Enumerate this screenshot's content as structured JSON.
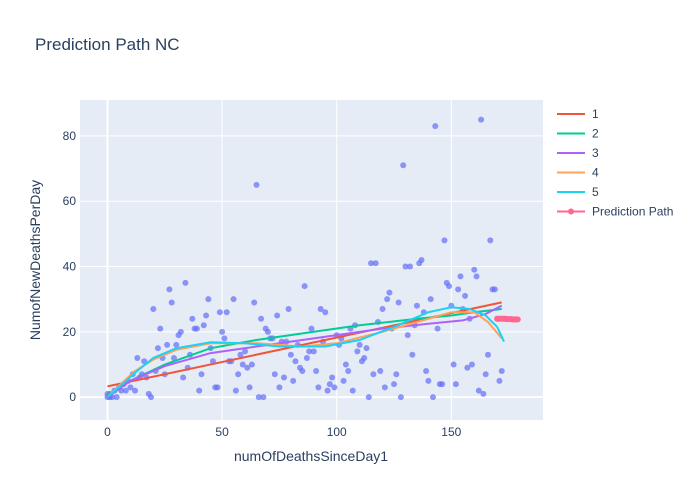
{
  "chart_data": {
    "type": "scatter",
    "title": "Prediction Path NC",
    "xlabel": "numOfDeathsSinceDay1",
    "ylabel": "NumofNewDeathsPerDay",
    "xlim": [
      -12,
      190
    ],
    "ylim": [
      -7,
      91
    ],
    "x_ticks": [
      0,
      50,
      100,
      150
    ],
    "y_ticks": [
      0,
      20,
      40,
      60,
      80
    ],
    "grid": true,
    "legend_position": "right",
    "colors": {
      "background": "#E5ECF6",
      "grid": "#ffffff",
      "scatter": "#636EFA",
      "1": "#EF553B",
      "2": "#00CC96",
      "3": "#AB63FA",
      "4": "#FFA15A",
      "5": "#19D3F3",
      "prediction": "#FF6692"
    },
    "scatter_points": [
      [
        0,
        0
      ],
      [
        0,
        1
      ],
      [
        1,
        0
      ],
      [
        1,
        1
      ],
      [
        2,
        0
      ],
      [
        3,
        2
      ],
      [
        4,
        0
      ],
      [
        5,
        3
      ],
      [
        6,
        2
      ],
      [
        7,
        4
      ],
      [
        8,
        2
      ],
      [
        9,
        5
      ],
      [
        10,
        3
      ],
      [
        11,
        7
      ],
      [
        12,
        2
      ],
      [
        13,
        12
      ],
      [
        14,
        6
      ],
      [
        15,
        7
      ],
      [
        16,
        11
      ],
      [
        17,
        6
      ],
      [
        18,
        1
      ],
      [
        19,
        0
      ],
      [
        20,
        27
      ],
      [
        21,
        8
      ],
      [
        22,
        15
      ],
      [
        23,
        21
      ],
      [
        24,
        12
      ],
      [
        25,
        7
      ],
      [
        26,
        16
      ],
      [
        27,
        33
      ],
      [
        28,
        29
      ],
      [
        29,
        12
      ],
      [
        30,
        16
      ],
      [
        31,
        19
      ],
      [
        32,
        20
      ],
      [
        33,
        6
      ],
      [
        34,
        35
      ],
      [
        35,
        9
      ],
      [
        36,
        13
      ],
      [
        37,
        24
      ],
      [
        38,
        21
      ],
      [
        39,
        21
      ],
      [
        40,
        2
      ],
      [
        41,
        7
      ],
      [
        42,
        22
      ],
      [
        43,
        25
      ],
      [
        44,
        30
      ],
      [
        45,
        15
      ],
      [
        46,
        11
      ],
      [
        47,
        3
      ],
      [
        48,
        3
      ],
      [
        49,
        26
      ],
      [
        50,
        20
      ],
      [
        51,
        18
      ],
      [
        52,
        26
      ],
      [
        53,
        11
      ],
      [
        54,
        11
      ],
      [
        55,
        30
      ],
      [
        56,
        2
      ],
      [
        57,
        7
      ],
      [
        58,
        13
      ],
      [
        59,
        10
      ],
      [
        60,
        14
      ],
      [
        61,
        9
      ],
      [
        62,
        3
      ],
      [
        63,
        10
      ],
      [
        64,
        29
      ],
      [
        65,
        65
      ],
      [
        66,
        0
      ],
      [
        67,
        24
      ],
      [
        68,
        0
      ],
      [
        69,
        21
      ],
      [
        70,
        20
      ],
      [
        71,
        18
      ],
      [
        72,
        18
      ],
      [
        73,
        7
      ],
      [
        74,
        25
      ],
      [
        75,
        3
      ],
      [
        76,
        17
      ],
      [
        77,
        6
      ],
      [
        78,
        17
      ],
      [
        79,
        27
      ],
      [
        80,
        13
      ],
      [
        81,
        5
      ],
      [
        82,
        11
      ],
      [
        83,
        16
      ],
      [
        84,
        9
      ],
      [
        85,
        8
      ],
      [
        86,
        34
      ],
      [
        87,
        12
      ],
      [
        88,
        14
      ],
      [
        89,
        21
      ],
      [
        90,
        14
      ],
      [
        91,
        8
      ],
      [
        92,
        3
      ],
      [
        93,
        27
      ],
      [
        94,
        17
      ],
      [
        95,
        26
      ],
      [
        96,
        2
      ],
      [
        97,
        4
      ],
      [
        98,
        6
      ],
      [
        99,
        3
      ],
      [
        100,
        19
      ],
      [
        101,
        16
      ],
      [
        102,
        18
      ],
      [
        103,
        5
      ],
      [
        104,
        10
      ],
      [
        105,
        8
      ],
      [
        106,
        21
      ],
      [
        107,
        2
      ],
      [
        108,
        22
      ],
      [
        109,
        14
      ],
      [
        110,
        16
      ],
      [
        111,
        11
      ],
      [
        112,
        12
      ],
      [
        113,
        15
      ],
      [
        114,
        0
      ],
      [
        115,
        41
      ],
      [
        116,
        7
      ],
      [
        117,
        41
      ],
      [
        118,
        23
      ],
      [
        119,
        8
      ],
      [
        120,
        27
      ],
      [
        121,
        3
      ],
      [
        122,
        30
      ],
      [
        123,
        32
      ],
      [
        124,
        21
      ],
      [
        125,
        4
      ],
      [
        126,
        7
      ],
      [
        127,
        29
      ],
      [
        128,
        0
      ],
      [
        129,
        71
      ],
      [
        130,
        40
      ],
      [
        131,
        19
      ],
      [
        132,
        40
      ],
      [
        133,
        13
      ],
      [
        134,
        22
      ],
      [
        135,
        28
      ],
      [
        136,
        41
      ],
      [
        137,
        42
      ],
      [
        138,
        26
      ],
      [
        139,
        8
      ],
      [
        140,
        5
      ],
      [
        141,
        30
      ],
      [
        142,
        0
      ],
      [
        143,
        83
      ],
      [
        144,
        21
      ],
      [
        145,
        4
      ],
      [
        146,
        4
      ],
      [
        147,
        48
      ],
      [
        148,
        35
      ],
      [
        149,
        34
      ],
      [
        150,
        28
      ],
      [
        151,
        10
      ],
      [
        152,
        4
      ],
      [
        153,
        33
      ],
      [
        154,
        37
      ],
      [
        155,
        27
      ],
      [
        156,
        31
      ],
      [
        157,
        9
      ],
      [
        158,
        24
      ],
      [
        159,
        10
      ],
      [
        160,
        39
      ],
      [
        161,
        37
      ],
      [
        162,
        2
      ],
      [
        163,
        85
      ],
      [
        164,
        1
      ],
      [
        165,
        7
      ],
      [
        166,
        13
      ],
      [
        167,
        48
      ],
      [
        168,
        33
      ],
      [
        169,
        33
      ],
      [
        170,
        24
      ],
      [
        171,
        5
      ],
      [
        172,
        8
      ]
    ],
    "series": [
      {
        "name": "1",
        "x": [
          0,
          172
        ],
        "y": [
          3.3,
          29
        ]
      },
      {
        "name": "2",
        "x": [
          0,
          10,
          25,
          45,
          65,
          90,
          110,
          135,
          150,
          160,
          166,
          172
        ],
        "y": [
          0.5,
          5,
          10,
          15,
          17.5,
          20,
          22,
          24,
          25,
          26,
          26.5,
          27
        ]
      },
      {
        "name": "3",
        "x": [
          0,
          10,
          25,
          45,
          70,
          100,
          120,
          140,
          155,
          165,
          172
        ],
        "y": [
          0,
          5,
          9.5,
          13.5,
          16,
          19,
          21,
          22.5,
          23.5,
          25.5,
          28
        ]
      },
      {
        "name": "4",
        "x": [
          0,
          5,
          12,
          20,
          30,
          45,
          65,
          85,
          100,
          120,
          140,
          150,
          160,
          166,
          172
        ],
        "y": [
          0,
          3.5,
          8,
          11.5,
          14.5,
          16.5,
          16.5,
          15.5,
          16.5,
          20,
          24,
          26,
          26,
          23,
          18
        ]
      },
      {
        "name": "5",
        "x": [
          0,
          5,
          12,
          20,
          30,
          45,
          60,
          75,
          95,
          110,
          125,
          140,
          150,
          158,
          165,
          170,
          173
        ],
        "y": [
          0,
          3,
          7.5,
          12,
          15,
          16.8,
          16.5,
          15.5,
          15.5,
          17.5,
          21.5,
          26,
          27.5,
          27,
          25,
          21.5,
          17
        ]
      },
      {
        "name": "Prediction Path",
        "x": [
          170,
          170.5,
          171,
          171.5,
          172,
          172.5,
          173,
          173.5,
          174,
          174.5,
          175,
          175.5,
          176,
          176.5,
          177,
          177.5,
          178,
          178.5,
          179
        ],
        "y": [
          24,
          24,
          24,
          24,
          24,
          24,
          24,
          24,
          23.9,
          23.9,
          23.9,
          23.9,
          23.9,
          23.8,
          23.8,
          23.8,
          23.8,
          23.8,
          23.8
        ]
      }
    ]
  }
}
